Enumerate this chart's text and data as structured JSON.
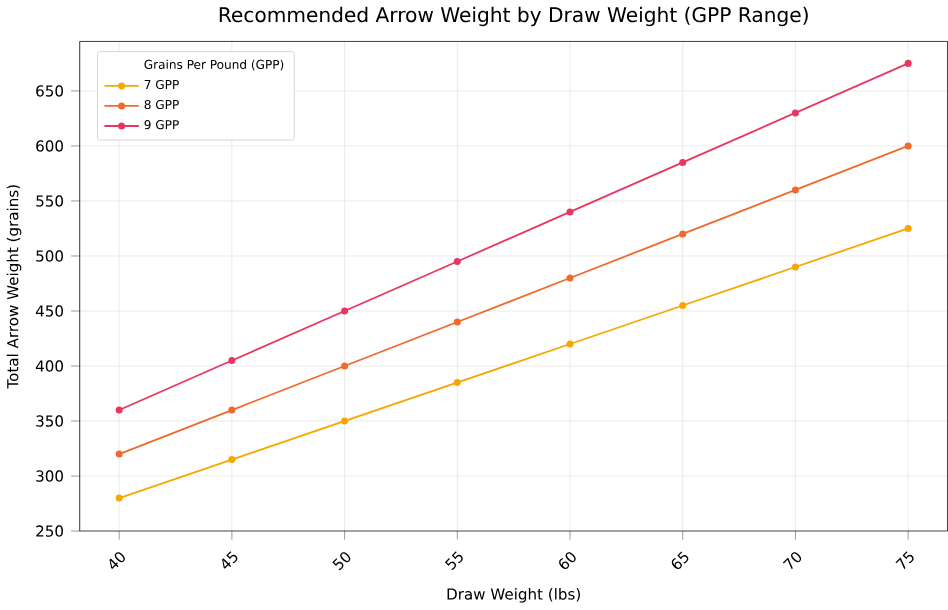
{
  "chart_data": {
    "type": "line",
    "title": "Recommended Arrow Weight by Draw Weight (GPP Range)",
    "xlabel": "Draw Weight (lbs)",
    "ylabel": "Total Arrow Weight (grains)",
    "legend_title": "Grains Per Pound (GPP)",
    "x": [
      40,
      45,
      50,
      55,
      60,
      65,
      70,
      75
    ],
    "series": [
      {
        "name": "7 GPP",
        "color": "#f5a800",
        "values": [
          280,
          315,
          350,
          385,
          420,
          455,
          490,
          525
        ]
      },
      {
        "name": "8 GPP",
        "color": "#f06a2c",
        "values": [
          320,
          360,
          400,
          440,
          480,
          520,
          560,
          600
        ]
      },
      {
        "name": "9 GPP",
        "color": "#e8375f",
        "values": [
          360,
          405,
          450,
          495,
          540,
          585,
          630,
          675
        ]
      }
    ],
    "xlim": [
      38.25,
      76.75
    ],
    "ylim": [
      250,
      695
    ],
    "xticks": [
      40,
      45,
      50,
      55,
      60,
      65,
      70,
      75
    ],
    "yticks": [
      250,
      300,
      350,
      400,
      450,
      500,
      550,
      600,
      650
    ],
    "grid": true,
    "legend": "top left",
    "marker": "circle",
    "line_style": "solid"
  }
}
